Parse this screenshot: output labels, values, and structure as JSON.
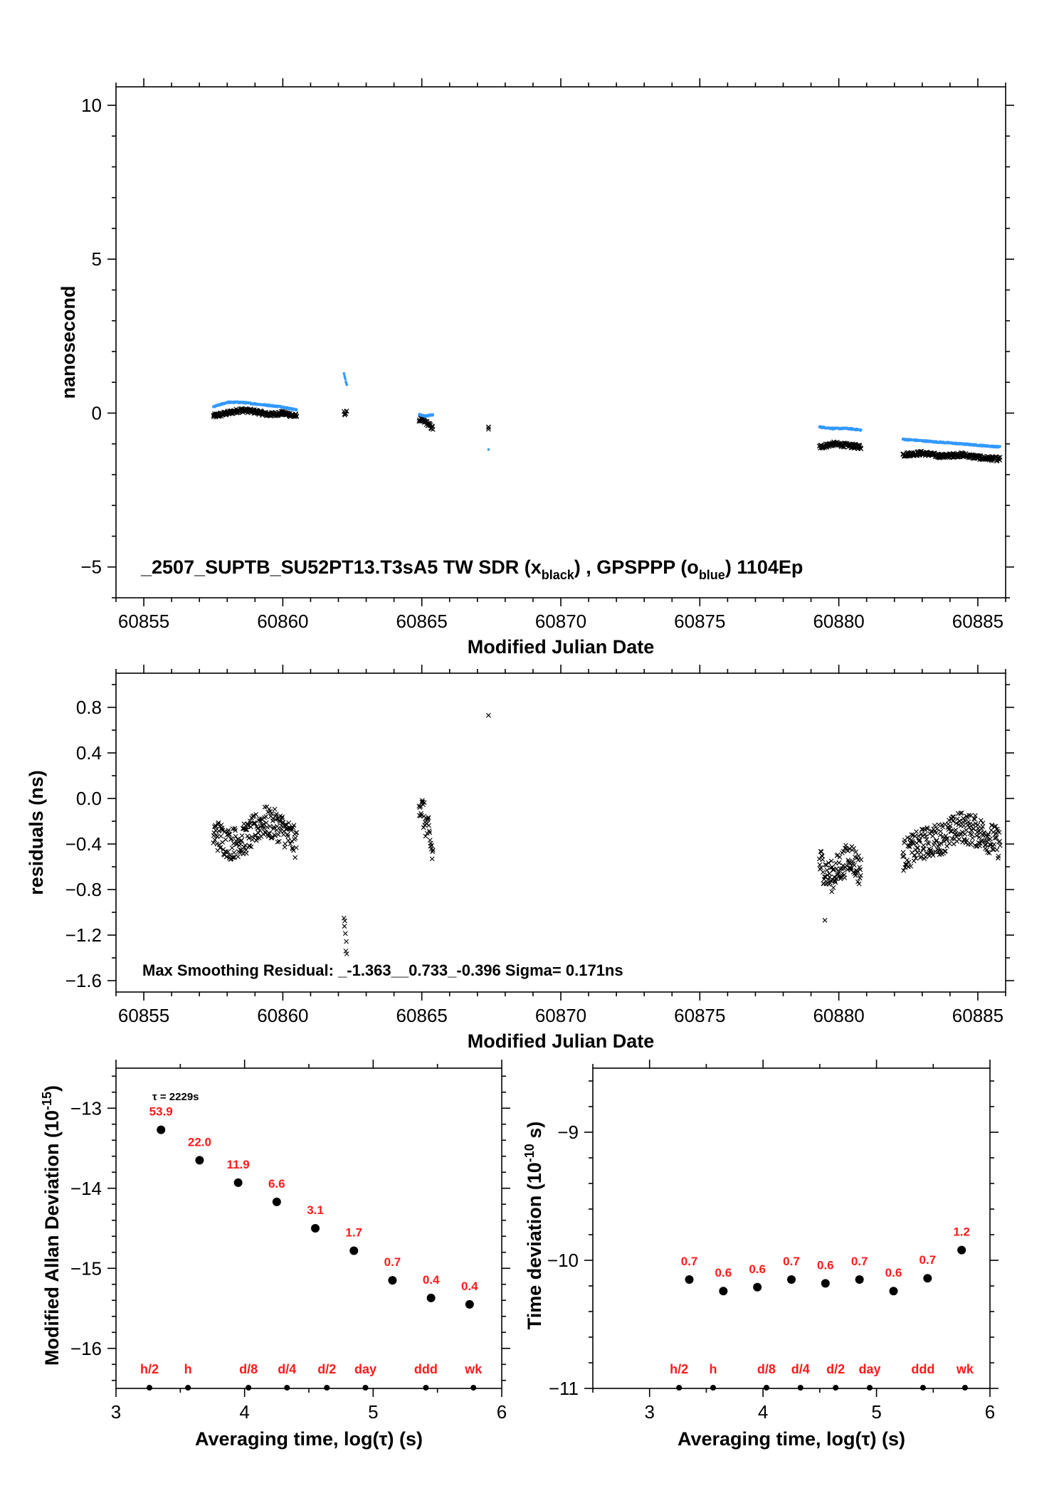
{
  "chart_data": [
    {
      "type": "scatter",
      "name": "time-series",
      "xlabel": "Modified Julian Date",
      "ylabel": "nanosecond",
      "xlim": [
        60854.0,
        60886.0
      ],
      "ylim": [
        -6.0,
        10.6
      ],
      "xticks": [
        60855,
        60860,
        60865,
        60870,
        60875,
        60880,
        60885
      ],
      "yticks": [
        -5,
        0,
        5,
        10
      ],
      "annotation": {
        "main": "_2507_SUPTB_SU52PT13.T3sA5     TW SDR (x",
        "sub1": "black",
        "mid": ") ,  GPSPPP (o",
        "sub2": "blue",
        "end": ")  1104Ep"
      },
      "colors": {
        "black_series": "#000000",
        "blue_series": "#3399ff"
      },
      "segments_black": [
        {
          "x0": 60857.5,
          "x1": 60860.5,
          "y": [
            -0.1,
            0.0,
            0.1,
            0.05,
            -0.05,
            0.0,
            -0.1
          ]
        },
        {
          "x0": 60862.2,
          "x1": 60862.3,
          "y": [
            0.0
          ]
        },
        {
          "x0": 60864.9,
          "x1": 60865.4,
          "y": [
            -0.2,
            -0.3,
            -0.5
          ]
        },
        {
          "x0": 60867.4,
          "x1": 60867.4,
          "y": [
            -0.5
          ]
        },
        {
          "x0": 60879.3,
          "x1": 60880.8,
          "y": [
            -1.1,
            -1.0,
            -1.05,
            -1.1
          ]
        },
        {
          "x0": 60882.3,
          "x1": 60885.8,
          "y": [
            -1.35,
            -1.3,
            -1.4,
            -1.35,
            -1.45,
            -1.5
          ]
        }
      ],
      "segments_blue": [
        {
          "x0": 60857.5,
          "x1": 60860.5,
          "y": [
            0.2,
            0.35,
            0.35,
            0.3,
            0.25,
            0.2,
            0.1
          ]
        },
        {
          "x0": 60862.2,
          "x1": 60862.3,
          "y": [
            1.3,
            0.9
          ]
        },
        {
          "x0": 60864.9,
          "x1": 60865.4,
          "y": [
            -0.05,
            -0.1,
            -0.05
          ]
        },
        {
          "x0": 60867.4,
          "x1": 60867.4,
          "y": [
            -1.2
          ]
        },
        {
          "x0": 60879.3,
          "x1": 60880.8,
          "y": [
            -0.45,
            -0.5,
            -0.5,
            -0.55
          ]
        },
        {
          "x0": 60882.3,
          "x1": 60885.8,
          "y": [
            -0.85,
            -0.9,
            -0.95,
            -1.0,
            -1.05,
            -1.1
          ]
        }
      ]
    },
    {
      "type": "scatter",
      "name": "residuals",
      "xlabel": "Modified Julian Date",
      "ylabel": "residuals (ns)",
      "xlim": [
        60854.0,
        60886.0
      ],
      "ylim": [
        -1.7,
        1.1
      ],
      "xticks": [
        60855,
        60860,
        60865,
        60870,
        60875,
        60880,
        60885
      ],
      "yticks": [
        -1.6,
        -1.2,
        -0.8,
        -0.4,
        0.0,
        0.4,
        0.8
      ],
      "ytick_labels": [
        "−1.6",
        "−1.2",
        "−0.8",
        "−0.4",
        "0.0",
        "0.4",
        "0.8"
      ],
      "annotation": "Max Smoothing Residual: _-1.363__0.733_-0.396  Sigma= 0.171ns",
      "segments": [
        {
          "x0": 60857.5,
          "x1": 60860.5,
          "y": [
            -0.3,
            -0.4,
            -0.35,
            -0.2,
            -0.25,
            -0.4
          ]
        },
        {
          "x0": 60862.2,
          "x1": 60862.3,
          "y": [
            -0.93,
            -1.2,
            -1.3,
            -1.36
          ]
        },
        {
          "x0": 60864.9,
          "x1": 60865.4,
          "y": [
            0.0,
            -0.15,
            -0.3,
            -0.5
          ]
        },
        {
          "x0": 60867.4,
          "x1": 60867.4,
          "y": [
            0.73
          ]
        },
        {
          "x0": 60879.3,
          "x1": 60880.8,
          "y": [
            -0.55,
            -0.7,
            -0.6,
            -0.5,
            -0.65
          ]
        },
        {
          "x0": 60882.3,
          "x1": 60885.8,
          "y": [
            -0.5,
            -0.4,
            -0.35,
            -0.25,
            -0.3,
            -0.4
          ]
        }
      ],
      "outliers": [
        {
          "x": 60879.5,
          "y": -1.07
        }
      ]
    },
    {
      "type": "scatter",
      "name": "modified-allan-deviation",
      "xlabel": "Averaging time, log(τ) (s)",
      "ylabel": "Modified Allan Deviation (10",
      "ylabel_sup": "-15",
      "ylabel_end": ")",
      "xlim": [
        3.0,
        6.0
      ],
      "ylim": [
        -16.5,
        -12.5
      ],
      "xticks": [
        3,
        4,
        5,
        6
      ],
      "yticks": [
        -16,
        -15,
        -14,
        -13
      ],
      "tau_note": "τ = 2229s",
      "points": [
        {
          "x": 3.35,
          "y": -13.27,
          "label": "53.9"
        },
        {
          "x": 3.65,
          "y": -13.65,
          "label": "22.0"
        },
        {
          "x": 3.95,
          "y": -13.93,
          "label": "11.9"
        },
        {
          "x": 4.25,
          "y": -14.17,
          "label": "6.6"
        },
        {
          "x": 4.55,
          "y": -14.5,
          "label": "3.1"
        },
        {
          "x": 4.85,
          "y": -14.78,
          "label": "1.7"
        },
        {
          "x": 5.15,
          "y": -15.15,
          "label": "0.7"
        },
        {
          "x": 5.45,
          "y": -15.37,
          "label": "0.4"
        },
        {
          "x": 5.75,
          "y": -15.45,
          "label": "0.4"
        }
      ],
      "markers": [
        {
          "x": 3.26,
          "label": "h/2"
        },
        {
          "x": 3.56,
          "label": "h"
        },
        {
          "x": 4.03,
          "label": "d/8"
        },
        {
          "x": 4.33,
          "label": "d/4"
        },
        {
          "x": 4.64,
          "label": "d/2"
        },
        {
          "x": 4.94,
          "label": "day"
        },
        {
          "x": 5.41,
          "label": "ddd"
        },
        {
          "x": 5.78,
          "label": "wk"
        }
      ]
    },
    {
      "type": "scatter",
      "name": "time-deviation",
      "xlabel": "Averaging time, log(τ) (s)",
      "ylabel": "Time deviation (10",
      "ylabel_sup": "-10",
      "ylabel_end": " s)",
      "xlim": [
        2.5,
        6.0
      ],
      "ylim": [
        -11.0,
        -8.5
      ],
      "xticks": [
        3,
        4,
        5,
        6
      ],
      "yticks": [
        -11,
        -10,
        -9
      ],
      "points": [
        {
          "x": 3.35,
          "y": -10.15,
          "label": "0.7"
        },
        {
          "x": 3.65,
          "y": -10.24,
          "label": "0.6"
        },
        {
          "x": 3.95,
          "y": -10.21,
          "label": "0.6"
        },
        {
          "x": 4.25,
          "y": -10.15,
          "label": "0.7"
        },
        {
          "x": 4.55,
          "y": -10.18,
          "label": "0.6"
        },
        {
          "x": 4.85,
          "y": -10.15,
          "label": "0.7"
        },
        {
          "x": 5.15,
          "y": -10.24,
          "label": "0.6"
        },
        {
          "x": 5.45,
          "y": -10.14,
          "label": "0.7"
        },
        {
          "x": 5.75,
          "y": -9.92,
          "label": "1.2"
        }
      ],
      "markers": [
        {
          "x": 3.26,
          "label": "h/2"
        },
        {
          "x": 3.56,
          "label": "h"
        },
        {
          "x": 4.03,
          "label": "d/8"
        },
        {
          "x": 4.33,
          "label": "d/4"
        },
        {
          "x": 4.64,
          "label": "d/2"
        },
        {
          "x": 4.94,
          "label": "day"
        },
        {
          "x": 5.41,
          "label": "ddd"
        },
        {
          "x": 5.78,
          "label": "wk"
        }
      ]
    }
  ]
}
